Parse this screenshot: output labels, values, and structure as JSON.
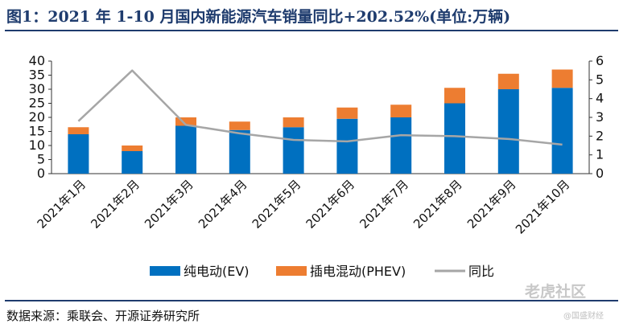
{
  "title": "图1：2021 年 1-10 月国内新能源汽车销量同比+202.52%(单位:万辆)",
  "source": "数据来源：乘联会、开源证券研究所",
  "watermark": "老虎社区",
  "watermark_sub": "@国盛财经",
  "colors": {
    "ev": "#0070C0",
    "phev": "#ED7D31",
    "yoy": "#A6A6A6",
    "title": "#1f3c6e"
  },
  "chart_data": {
    "type": "bar",
    "stacked": true,
    "title": "2021 年 1-10 月国内新能源汽车销量同比+202.52%(单位:万辆)",
    "categories": [
      "2021年1月",
      "2021年2月",
      "2021年3月",
      "2021年4月",
      "2021年5月",
      "2021年6月",
      "2021年7月",
      "2021年8月",
      "2021年9月",
      "2021年10月"
    ],
    "series": [
      {
        "name": "纯电动(EV)",
        "axis": "left",
        "type": "bar",
        "values": [
          14.0,
          8.0,
          17.0,
          15.5,
          16.5,
          19.5,
          20.0,
          25.0,
          30.0,
          30.5
        ]
      },
      {
        "name": "插电混动(PHEV)",
        "axis": "left",
        "type": "bar",
        "values": [
          2.5,
          2.0,
          3.0,
          3.0,
          3.5,
          4.0,
          4.5,
          5.5,
          5.5,
          6.5
        ]
      },
      {
        "name": "同比",
        "axis": "right",
        "type": "line",
        "values": [
          2.8,
          5.5,
          2.6,
          2.15,
          1.8,
          1.72,
          2.05,
          2.0,
          1.85,
          1.55
        ]
      }
    ],
    "ylim_left": [
      0,
      40
    ],
    "yticks_left": [
      0,
      5,
      10,
      15,
      20,
      25,
      30,
      35,
      40
    ],
    "ylim_right": [
      0,
      6
    ],
    "yticks_right": [
      0,
      1,
      2,
      3,
      4,
      5,
      6
    ],
    "legend_position": "bottom",
    "grid": false
  }
}
